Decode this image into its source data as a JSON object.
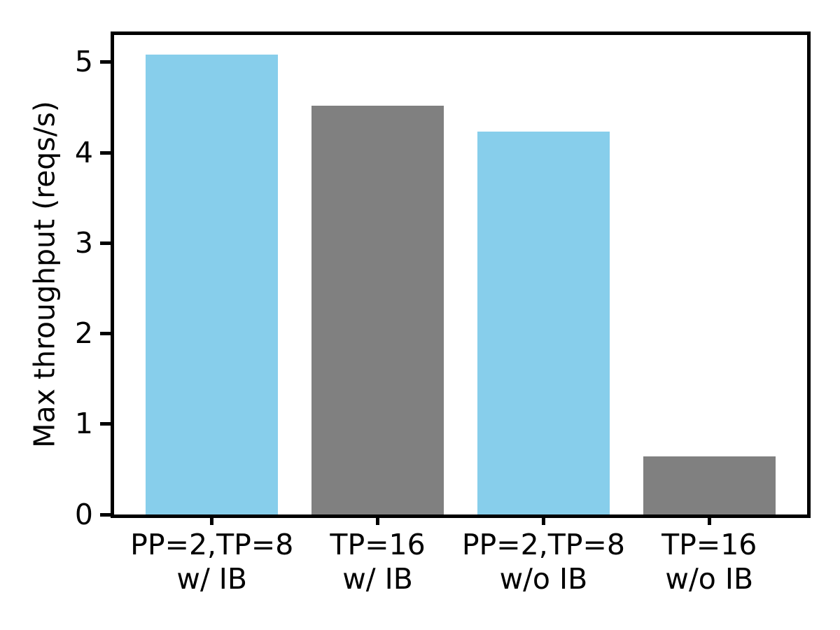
{
  "chart_data": {
    "type": "bar",
    "ylabel": "Max throughput (reqs/s)",
    "categories": [
      "PP=2,TP=8\nw/ IB",
      "TP=16\nw/ IB",
      "PP=2,TP=8\nw/o IB",
      "TP=16\nw/o IB"
    ],
    "values": [
      5.08,
      4.52,
      4.23,
      0.64
    ],
    "bar_colors": [
      "#87CEEB",
      "#808080",
      "#87CEEB",
      "#808080"
    ],
    "bar_width": 0.8,
    "ylim": [
      0,
      5.3
    ],
    "yticks": [
      0,
      1,
      2,
      3,
      4,
      5
    ],
    "xlim": [
      -0.59,
      3.59
    ],
    "grid": false,
    "legend": "none",
    "axis_color": "#000000",
    "text_color": "#000000",
    "background_color": "#ffffff"
  }
}
